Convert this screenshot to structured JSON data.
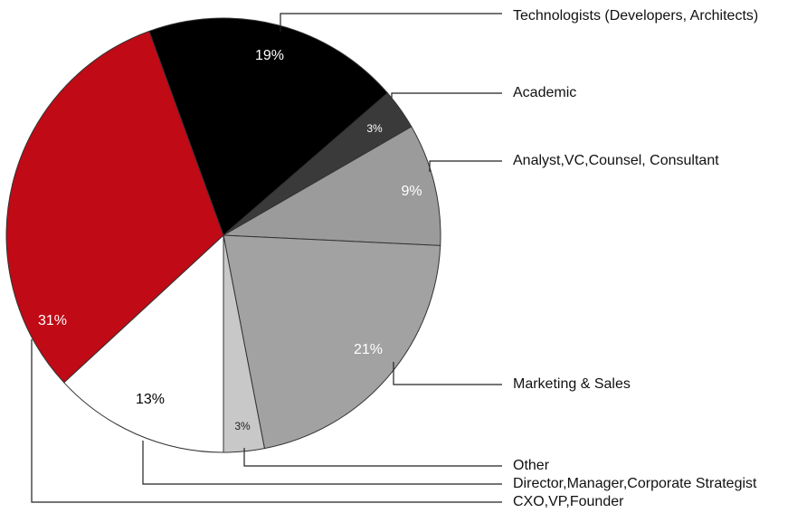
{
  "chart_data": {
    "type": "pie",
    "categories": [
      "Technologists (Developers, Architects)",
      "Academic",
      "Analyst,VC,Counsel, Consultant",
      "Marketing & Sales",
      "Other",
      "Director,Manager,Corporate Strategist",
      "CXO,VP,Founder"
    ],
    "values": [
      19,
      3,
      9,
      21,
      3,
      13,
      31
    ],
    "value_labels": [
      "19%",
      "3%",
      "9%",
      "21%",
      "3%",
      "13%",
      "31%"
    ],
    "colors": [
      "#000000",
      "#3a3a3a",
      "#9b9b9b",
      "#a2a2a2",
      "#c8c8c8",
      "#ffffff",
      "#c00a16"
    ]
  }
}
